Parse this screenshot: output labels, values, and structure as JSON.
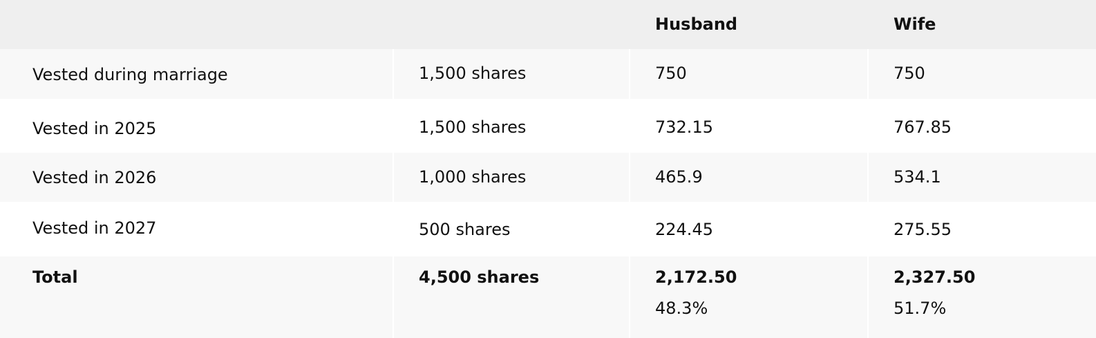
{
  "table": {
    "headers": [
      "",
      "",
      "Husband",
      "Wife"
    ],
    "rows": [
      [
        "Vested during marriage",
        "1,500 shares",
        "750",
        "750"
      ],
      [
        "Vested in 2025",
        "1,500 shares",
        "732.15",
        "767.85"
      ],
      [
        "Vested in 2026",
        "1,000 shares",
        "465.9",
        "534.1"
      ],
      [
        "Vested in 2027",
        "500 shares",
        "224.45",
        "275.55"
      ]
    ],
    "total": {
      "label": "Total",
      "shares": "4,500 shares",
      "husband": "2,172.50",
      "wife": "2,327.50",
      "husband_pct": "48.3%",
      "wife_pct": "51.7%"
    }
  },
  "colors": {
    "header_bg": "#efefef",
    "shaded_row_bg": "#f8f8f8",
    "text": "#111111"
  }
}
